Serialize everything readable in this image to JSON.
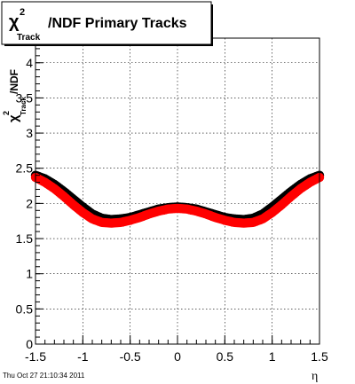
{
  "chart_data": {
    "type": "scatter",
    "title": {
      "chi": "χ",
      "sup": "2",
      "sub": "Track",
      "rest": "/NDF  Primary Tracks"
    },
    "ylabel": {
      "chi": "χ",
      "sup": "2",
      "sub": "Track",
      "rest": "/NDF"
    },
    "xlabel": "η",
    "xlim": [
      -1.5,
      1.5
    ],
    "ylim": [
      0,
      4.35
    ],
    "x_ticks": [
      -1.5,
      -1,
      -0.5,
      0,
      0.5,
      1,
      1.5
    ],
    "x_tick_labels": [
      "-1.5",
      "-1",
      "-0.5",
      "0",
      "0.5",
      "1",
      "1.5"
    ],
    "y_ticks": [
      0,
      0.5,
      1,
      1.5,
      2,
      2.5,
      3,
      3.5,
      4
    ],
    "y_tick_labels": [
      "0",
      "0.5",
      "1",
      "1.5",
      "2",
      "2.5",
      "3",
      "3.5",
      "4"
    ],
    "grid": true,
    "series": [
      {
        "color": "#000000",
        "x": [
          -1.5,
          -1.4,
          -1.3,
          -1.2,
          -1.1,
          -1.0,
          -0.9,
          -0.8,
          -0.7,
          -0.6,
          -0.5,
          -0.4,
          -0.3,
          -0.2,
          -0.1,
          0.0,
          0.1,
          0.2,
          0.3,
          0.4,
          0.5,
          0.6,
          0.7,
          0.8,
          0.9,
          1.0,
          1.1,
          1.2,
          1.3,
          1.4,
          1.5
        ],
        "y": [
          2.4,
          2.35,
          2.27,
          2.17,
          2.06,
          1.95,
          1.85,
          1.79,
          1.77,
          1.78,
          1.8,
          1.84,
          1.88,
          1.92,
          1.94,
          1.95,
          1.94,
          1.92,
          1.88,
          1.84,
          1.8,
          1.78,
          1.77,
          1.79,
          1.85,
          1.95,
          2.06,
          2.17,
          2.27,
          2.35,
          2.4
        ]
      },
      {
        "color": "#ff0000",
        "x": [
          -1.5,
          -1.4,
          -1.3,
          -1.2,
          -1.1,
          -1.0,
          -0.9,
          -0.8,
          -0.7,
          -0.6,
          -0.5,
          -0.4,
          -0.3,
          -0.2,
          -0.1,
          0.0,
          0.1,
          0.2,
          0.3,
          0.4,
          0.5,
          0.6,
          0.7,
          0.8,
          0.9,
          1.0,
          1.1,
          1.2,
          1.3,
          1.4,
          1.5
        ],
        "y": [
          2.37,
          2.3,
          2.21,
          2.1,
          1.98,
          1.87,
          1.78,
          1.73,
          1.72,
          1.73,
          1.76,
          1.8,
          1.85,
          1.89,
          1.92,
          1.93,
          1.92,
          1.89,
          1.85,
          1.8,
          1.76,
          1.73,
          1.72,
          1.73,
          1.78,
          1.87,
          1.98,
          2.1,
          2.21,
          2.3,
          2.37
        ]
      }
    ]
  },
  "footer": {
    "date_stamp": "Thu Oct 27 21:10:34 2011"
  }
}
